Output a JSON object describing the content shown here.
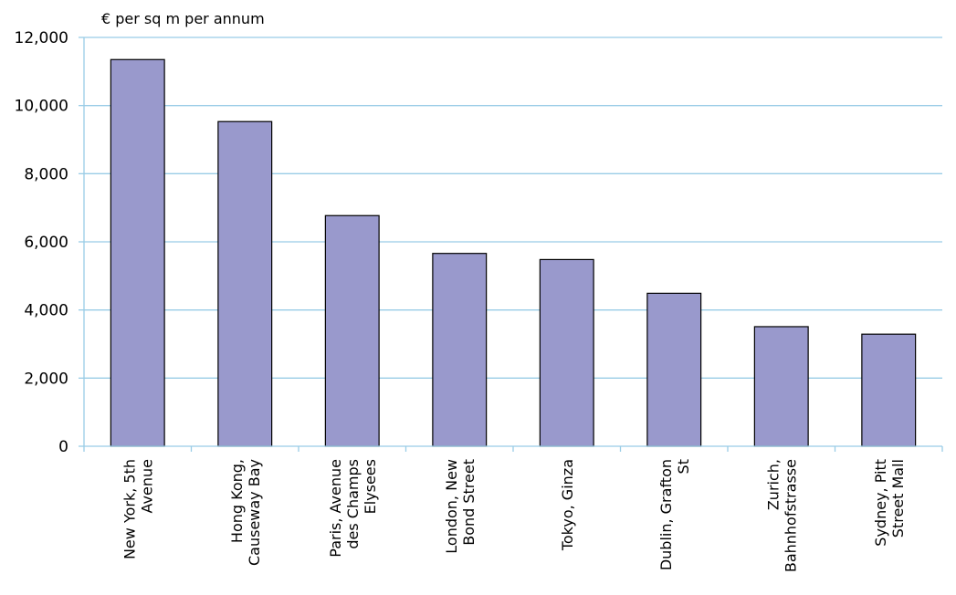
{
  "chart_data": {
    "type": "bar",
    "ylabel": "€ per sq m per annum",
    "xlabel": "",
    "title": "",
    "categories": [
      [
        "New York, 5th",
        "Avenue"
      ],
      [
        "Hong Kong,",
        "Causeway Bay"
      ],
      [
        "Paris, Avenue",
        "des Champs",
        "Elysees"
      ],
      [
        "London, New",
        "Bond Street"
      ],
      [
        "Tokyo, Ginza"
      ],
      [
        "Dublin, Grafton",
        "St"
      ],
      [
        "Zurich,",
        "Bahnhofstrasse"
      ],
      [
        "Sydney, Pitt",
        "Street Mall"
      ]
    ],
    "values": [
      11350,
      9530,
      6770,
      5660,
      5480,
      4490,
      3510,
      3290
    ],
    "ylim": [
      0,
      12000
    ],
    "yticks": [
      0,
      2000,
      4000,
      6000,
      8000,
      10000,
      12000
    ],
    "ytick_labels": [
      "0",
      "2,000",
      "4,000",
      "6,000",
      "8,000",
      "10,000",
      "12,000"
    ],
    "grid": true,
    "legend": "none",
    "colors": {
      "bar_fill": "#9999cc",
      "bar_stroke": "#000000",
      "grid": "#99cce6",
      "axis": "#99cce6"
    }
  }
}
